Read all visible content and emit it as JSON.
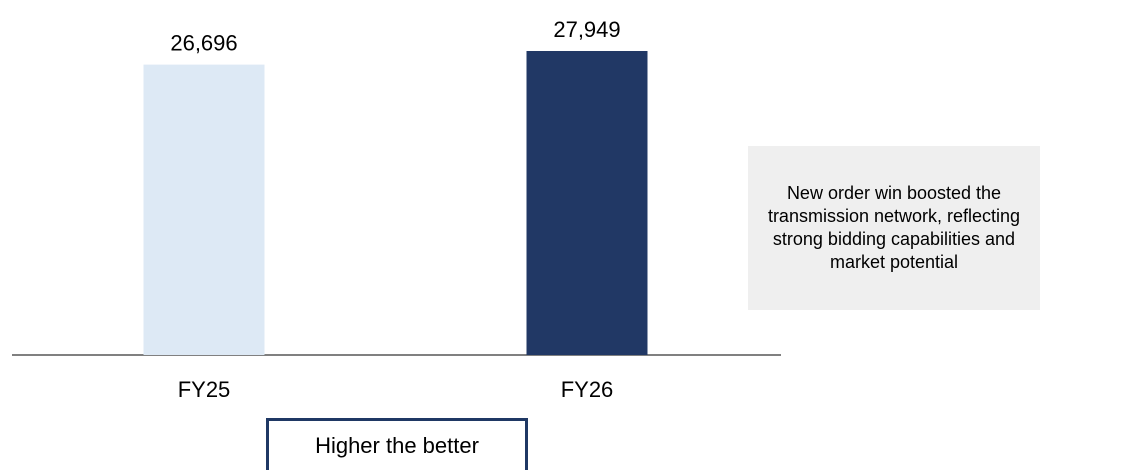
{
  "chart_data": {
    "type": "bar",
    "categories": [
      "FY25",
      "FY26"
    ],
    "values": [
      26696,
      27949
    ],
    "data_labels": [
      "26,696",
      "27,949"
    ],
    "colors": [
      "#dde9f5",
      "#213865"
    ],
    "axis_color": "#808080",
    "ylim": [
      0,
      28500
    ],
    "title": "",
    "xlabel": "",
    "ylabel": "",
    "grid": false
  },
  "note": {
    "text": "New order win boosted the transmission network, reflecting strong bidding capabilities and market potential",
    "background": "#efefef"
  },
  "footer": {
    "label": "Higher the better",
    "border_color": "#1f3864"
  }
}
